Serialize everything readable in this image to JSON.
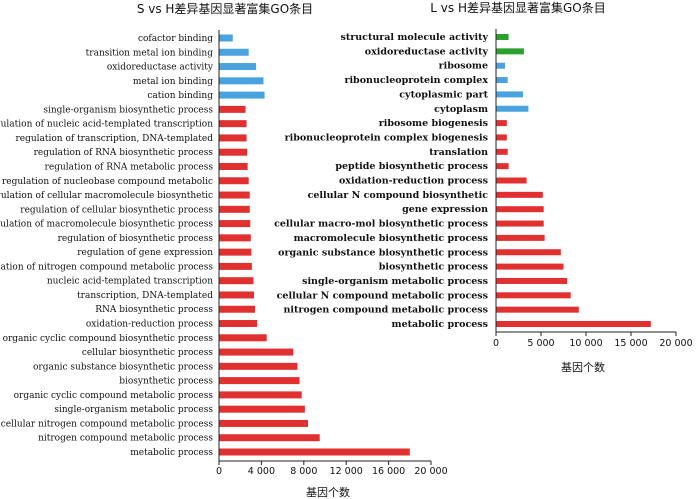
{
  "colors": {
    "mf": "#4aa3df",
    "bp": "#e03030",
    "cc": "#2ca02c"
  },
  "chart_data": [
    {
      "type": "bar",
      "orientation": "horizontal",
      "title": "S vs H差异基因显著富集GO条目",
      "xlabel": "基因个数",
      "ylabel": "",
      "xlim": [
        0,
        20000
      ],
      "xticks": [
        "0",
        "4 000",
        "8 000",
        "12 000",
        "16 000",
        "20 000"
      ],
      "xtick_values": [
        0,
        4000,
        8000,
        12000,
        16000,
        20000
      ],
      "grid": false,
      "categories": [
        "cofactor binding",
        "transition metal ion binding",
        "oxidoreductase activity",
        "metal ion binding",
        "cation binding",
        "single-organism biosynthetic process",
        "regulation of nucleic acid-templated transcription",
        "regulation of transcription, DNA-templated",
        "regulation of RNA biosynthetic process",
        "regulation of RNA metabolic process",
        "regulation of nucleobase compound metabolic",
        "regulation of cellular macromolecule biosynthetic",
        "regulation of cellular biosynthetic process",
        "regulation of macromolecule biosynthetic process",
        "regulation of biosynthetic process",
        "regulation of gene expression",
        "regulation of nitrogen compound metabolic process",
        "nucleic acid-templated transcription",
        "transcription, DNA-templated",
        "RNA biosynthetic process",
        "oxidation-reduction process",
        "organic cyclic compound biosynthetic process",
        "cellular biosynthetic process",
        "organic substance biosynthetic process",
        "biosynthetic process",
        "organic cyclic compound metabolic process",
        "single-organism metabolic process",
        "cellular nitrogen compound metabolic process",
        "nitrogen compound metabolic process",
        "metabolic process"
      ],
      "values": [
        1300,
        2800,
        3500,
        4200,
        4300,
        2500,
        2600,
        2600,
        2650,
        2700,
        2800,
        2900,
        2900,
        2950,
        3000,
        3050,
        3100,
        3250,
        3300,
        3400,
        3600,
        4500,
        7000,
        7400,
        7600,
        7800,
        8100,
        8400,
        9500,
        18000
      ],
      "groups": [
        "mf",
        "mf",
        "mf",
        "mf",
        "mf",
        "bp",
        "bp",
        "bp",
        "bp",
        "bp",
        "bp",
        "bp",
        "bp",
        "bp",
        "bp",
        "bp",
        "bp",
        "bp",
        "bp",
        "bp",
        "bp",
        "bp",
        "bp",
        "bp",
        "bp",
        "bp",
        "bp",
        "bp",
        "bp",
        "bp"
      ]
    },
    {
      "type": "bar",
      "orientation": "horizontal",
      "title": "L vs H差异基因显著富集GO条目",
      "xlabel": "基因个数",
      "ylabel": "",
      "xlim": [
        0,
        20000
      ],
      "xticks": [
        "0",
        "5 000",
        "10 000",
        "15 000",
        "20 000"
      ],
      "xtick_values": [
        0,
        5000,
        10000,
        15000,
        20000
      ],
      "grid": false,
      "categories": [
        "structural molecule activity",
        "oxidoreductase activity",
        "ribosome",
        "ribonucleoprotein complex",
        "cytoplasmic part",
        "cytoplasm",
        "ribosome biogenesis",
        "ribonucleoprotein complex biogenesis",
        "translation",
        "peptide biosynthetic process",
        "oxidation-reduction process",
        "cellular N compound biosynthetic",
        "gene expression",
        "cellular macro-mol biosynthetic process",
        "macromolecule biosynthetic process",
        "organic substance biosynthetic process",
        "biosynthetic process",
        "single-organism metabolic process",
        "cellular N compound metabolic process",
        "nitrogen compound metabolic process",
        "metabolic process"
      ],
      "values": [
        1400,
        3100,
        1000,
        1300,
        3000,
        3600,
        1200,
        1200,
        1300,
        1400,
        3400,
        5200,
        5300,
        5300,
        5400,
        7200,
        7500,
        7900,
        8300,
        9200,
        17200
      ],
      "groups": [
        "cc",
        "cc",
        "mf",
        "mf",
        "mf",
        "mf",
        "bp",
        "bp",
        "bp",
        "bp",
        "bp",
        "bp",
        "bp",
        "bp",
        "bp",
        "bp",
        "bp",
        "bp",
        "bp",
        "bp",
        "bp"
      ]
    }
  ]
}
